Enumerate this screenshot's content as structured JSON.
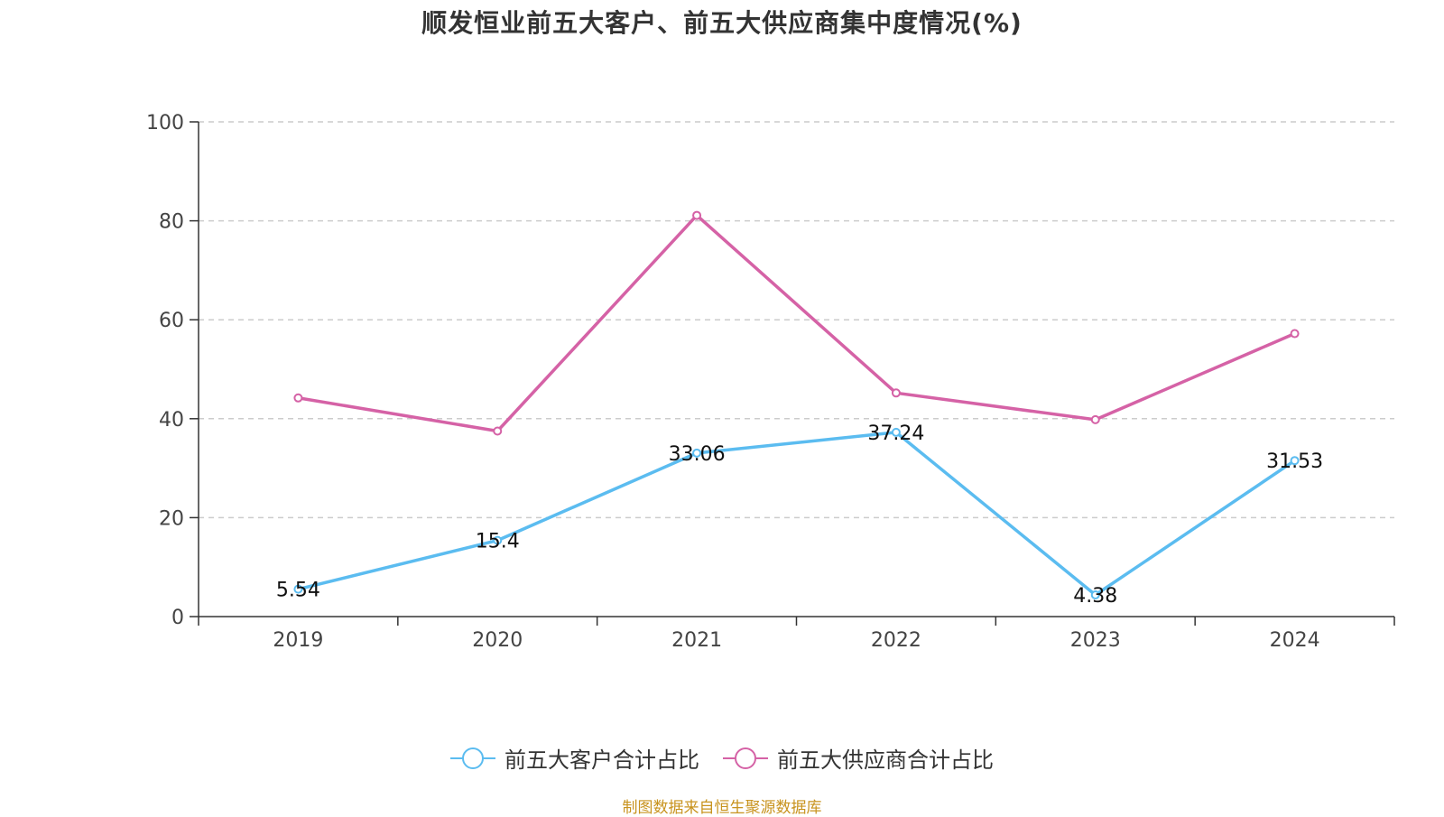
{
  "title": "顺发恒业前五大客户、前五大供应商集中度情况(%)",
  "source": "制图数据来自恒生聚源数据库",
  "chart_data": {
    "type": "line",
    "title": "顺发恒业前五大客户、前五大供应商集中度情况(%)",
    "categories": [
      "2019",
      "2020",
      "2021",
      "2022",
      "2023",
      "2024"
    ],
    "ylim": [
      0,
      100
    ],
    "yticks": [
      0,
      20,
      40,
      60,
      80,
      100
    ],
    "grid": "horizontal-dashed",
    "legend_position": "bottom",
    "series": [
      {
        "name": "前五大客户合计占比",
        "color": "#5bbcf0",
        "values": [
          5.54,
          15.4,
          33.06,
          37.24,
          4.38,
          31.53
        ],
        "labels": [
          "5.54",
          "15.4",
          "33.06",
          "37.24",
          "4.38",
          "31.53"
        ],
        "show_labels": true
      },
      {
        "name": "前五大供应商合计占比",
        "color": "#d562a6",
        "values": [
          44.2,
          37.5,
          81.1,
          45.2,
          39.8,
          57.2
        ],
        "show_labels": false
      }
    ]
  }
}
